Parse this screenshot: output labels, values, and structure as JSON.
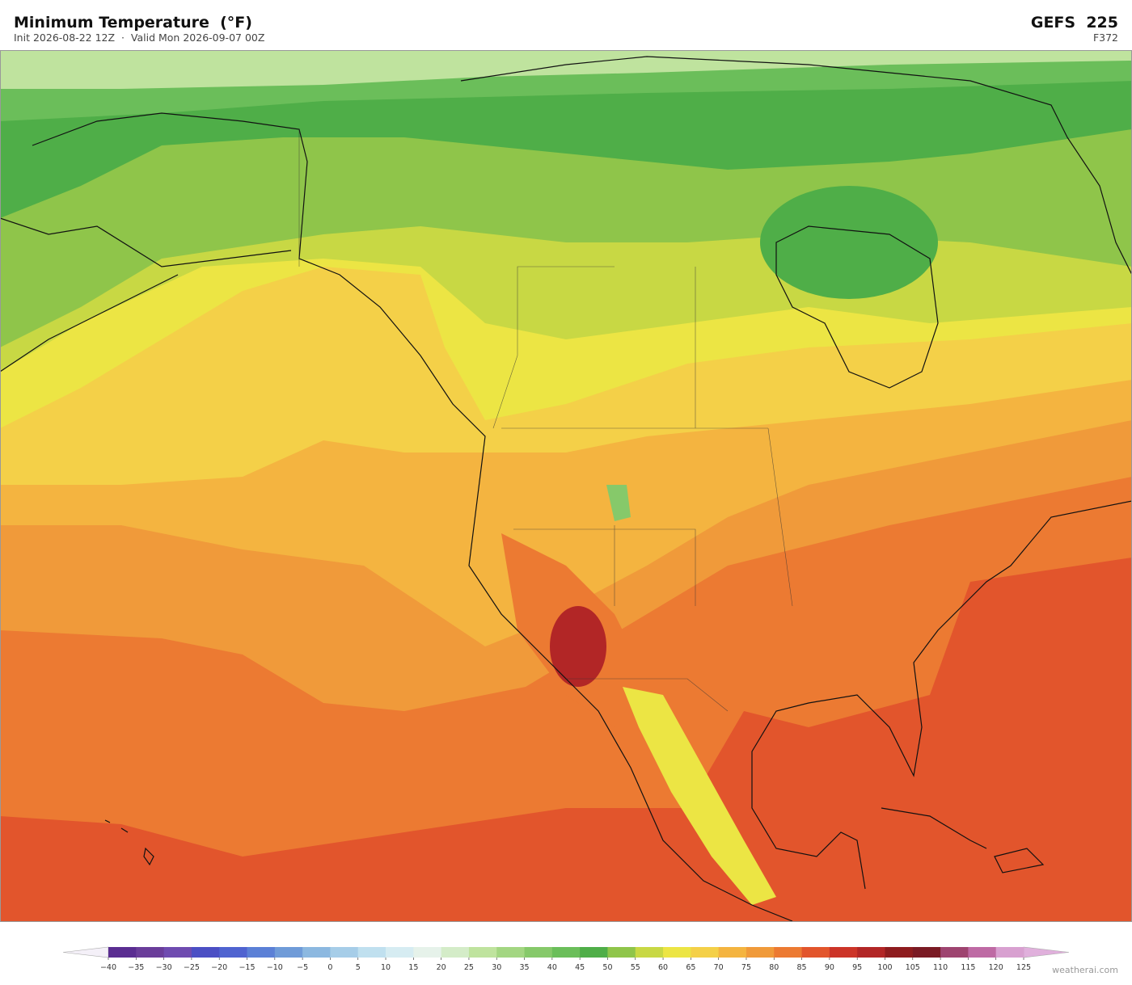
{
  "header": {
    "title": "Minimum Temperature  (°F)",
    "subtitle": "Init 2026-08-22 12Z  ·  Valid Mon 2026-09-07 00Z",
    "model": "GEFS  225",
    "forecast_hour": "F372"
  },
  "colorbar": {
    "ticks": [
      {
        "value": -40,
        "label": "−40"
      },
      {
        "value": -35,
        "label": "−35"
      },
      {
        "value": -30,
        "label": "−30"
      },
      {
        "value": -25,
        "label": "−25"
      },
      {
        "value": -20,
        "label": "−20"
      },
      {
        "value": -15,
        "label": "−15"
      },
      {
        "value": -10,
        "label": "−10"
      },
      {
        "value": -5,
        "label": "−5"
      },
      0,
      5,
      10,
      15,
      20,
      25,
      30,
      35,
      40,
      45,
      50,
      55,
      60,
      65,
      70,
      75,
      80,
      85,
      90,
      95,
      100,
      105,
      110,
      115,
      120,
      125
    ],
    "colors": [
      "#5a2d91",
      "#6a3d9a",
      "#6f4bb0",
      "#4b4fc4",
      "#4f63d0",
      "#5b80d6",
      "#6f9bd8",
      "#8cb8e0",
      "#a6cde8",
      "#c0e0ef",
      "#d6ecf2",
      "#e6f2ea",
      "#d4ecc8",
      "#bfe39e",
      "#a3d682",
      "#86c96a",
      "#6bbe5a",
      "#4fae48",
      "#8fc54a",
      "#c8d844",
      "#ece544",
      "#f4d048",
      "#f4b440",
      "#f09a3a",
      "#ec7a32",
      "#e2552c",
      "#cc3428",
      "#b22626",
      "#8e1c1e",
      "#7a1a24",
      "#9e4470",
      "#be6aa4",
      "#d8a0d0"
    ],
    "under_color": "#f4f0f8",
    "over_color": "#e0b0dc"
  },
  "watermark": "weatherai.com"
}
